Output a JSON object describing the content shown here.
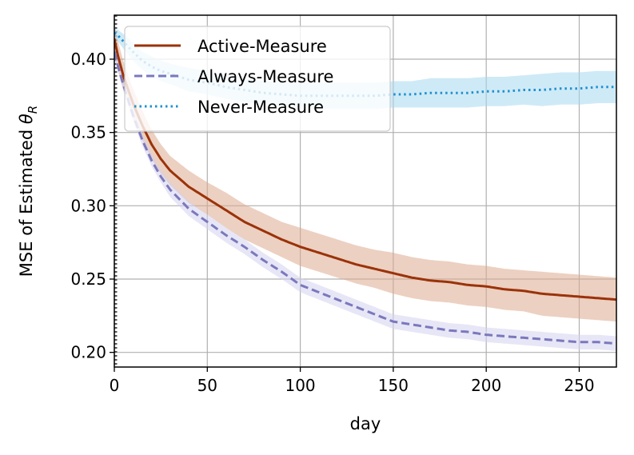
{
  "chart_data": {
    "type": "line",
    "xlabel": "day",
    "ylabel_main": "MSE of Estimated ",
    "ylabel_symbol": "θ",
    "ylabel_subscript": "R",
    "xlim": [
      0,
      270
    ],
    "ylim": [
      0.19,
      0.43
    ],
    "xticks": [
      0,
      50,
      100,
      150,
      200,
      250
    ],
    "yticks": [
      0.2,
      0.25,
      0.3,
      0.35,
      0.4
    ],
    "ytick_labels": [
      "0.20",
      "0.25",
      "0.30",
      "0.35",
      "0.40"
    ],
    "grid": true,
    "legend_position": "top-left",
    "vertical_marker": {
      "x": 0,
      "style": "dotted",
      "color": "#555555"
    },
    "series": [
      {
        "name": "Active-Measure",
        "color": "#9b3209",
        "band_color": "#dca98e",
        "line_style": "solid",
        "x": [
          0,
          2,
          5,
          10,
          15,
          20,
          25,
          30,
          40,
          50,
          60,
          70,
          80,
          90,
          100,
          110,
          120,
          130,
          140,
          150,
          160,
          170,
          180,
          190,
          200,
          210,
          220,
          230,
          240,
          250,
          260,
          270
        ],
        "y": [
          0.414,
          0.402,
          0.388,
          0.37,
          0.355,
          0.342,
          0.332,
          0.324,
          0.313,
          0.305,
          0.297,
          0.289,
          0.283,
          0.277,
          0.272,
          0.268,
          0.264,
          0.26,
          0.257,
          0.254,
          0.251,
          0.249,
          0.248,
          0.246,
          0.245,
          0.243,
          0.242,
          0.24,
          0.239,
          0.238,
          0.237,
          0.236
        ],
        "band": [
          0.01,
          0.01,
          0.01,
          0.01,
          0.01,
          0.01,
          0.01,
          0.01,
          0.011,
          0.011,
          0.012,
          0.012,
          0.012,
          0.012,
          0.013,
          0.013,
          0.013,
          0.013,
          0.013,
          0.014,
          0.014,
          0.014,
          0.014,
          0.014,
          0.014,
          0.014,
          0.014,
          0.015,
          0.015,
          0.015,
          0.015,
          0.015
        ]
      },
      {
        "name": "Always-Measure",
        "color": "#7b78bd",
        "band_color": "#d3d2ef",
        "line_style": "dashed",
        "x": [
          0,
          2,
          5,
          10,
          15,
          20,
          25,
          30,
          40,
          50,
          60,
          70,
          80,
          90,
          100,
          110,
          120,
          130,
          140,
          150,
          160,
          170,
          180,
          190,
          200,
          210,
          220,
          230,
          240,
          250,
          260,
          270
        ],
        "y": [
          0.405,
          0.395,
          0.382,
          0.362,
          0.345,
          0.331,
          0.32,
          0.311,
          0.298,
          0.289,
          0.28,
          0.272,
          0.263,
          0.255,
          0.246,
          0.241,
          0.236,
          0.231,
          0.226,
          0.221,
          0.219,
          0.217,
          0.215,
          0.214,
          0.212,
          0.211,
          0.21,
          0.209,
          0.208,
          0.207,
          0.207,
          0.206
        ],
        "band": [
          0.004,
          0.004,
          0.004,
          0.004,
          0.004,
          0.004,
          0.004,
          0.005,
          0.005,
          0.005,
          0.005,
          0.005,
          0.005,
          0.005,
          0.005,
          0.005,
          0.005,
          0.005,
          0.005,
          0.005,
          0.005,
          0.005,
          0.005,
          0.005,
          0.005,
          0.005,
          0.005,
          0.005,
          0.005,
          0.005,
          0.005,
          0.005
        ]
      },
      {
        "name": "Never-Measure",
        "color": "#1f92cf",
        "band_color": "#a8d8f0",
        "line_style": "dotted",
        "x": [
          0,
          2,
          5,
          10,
          15,
          20,
          25,
          30,
          40,
          50,
          60,
          70,
          80,
          90,
          100,
          110,
          120,
          130,
          140,
          150,
          160,
          170,
          180,
          190,
          200,
          210,
          220,
          230,
          240,
          250,
          260,
          270
        ],
        "y": [
          0.418,
          0.416,
          0.412,
          0.405,
          0.399,
          0.395,
          0.392,
          0.39,
          0.386,
          0.384,
          0.381,
          0.379,
          0.377,
          0.376,
          0.375,
          0.375,
          0.375,
          0.375,
          0.375,
          0.376,
          0.376,
          0.377,
          0.377,
          0.377,
          0.378,
          0.378,
          0.379,
          0.379,
          0.38,
          0.38,
          0.381,
          0.381
        ],
        "band": [
          0.003,
          0.004,
          0.005,
          0.006,
          0.006,
          0.007,
          0.007,
          0.007,
          0.008,
          0.008,
          0.008,
          0.008,
          0.008,
          0.008,
          0.009,
          0.009,
          0.009,
          0.009,
          0.009,
          0.009,
          0.009,
          0.01,
          0.01,
          0.01,
          0.01,
          0.01,
          0.01,
          0.011,
          0.011,
          0.011,
          0.011,
          0.011
        ]
      }
    ]
  }
}
